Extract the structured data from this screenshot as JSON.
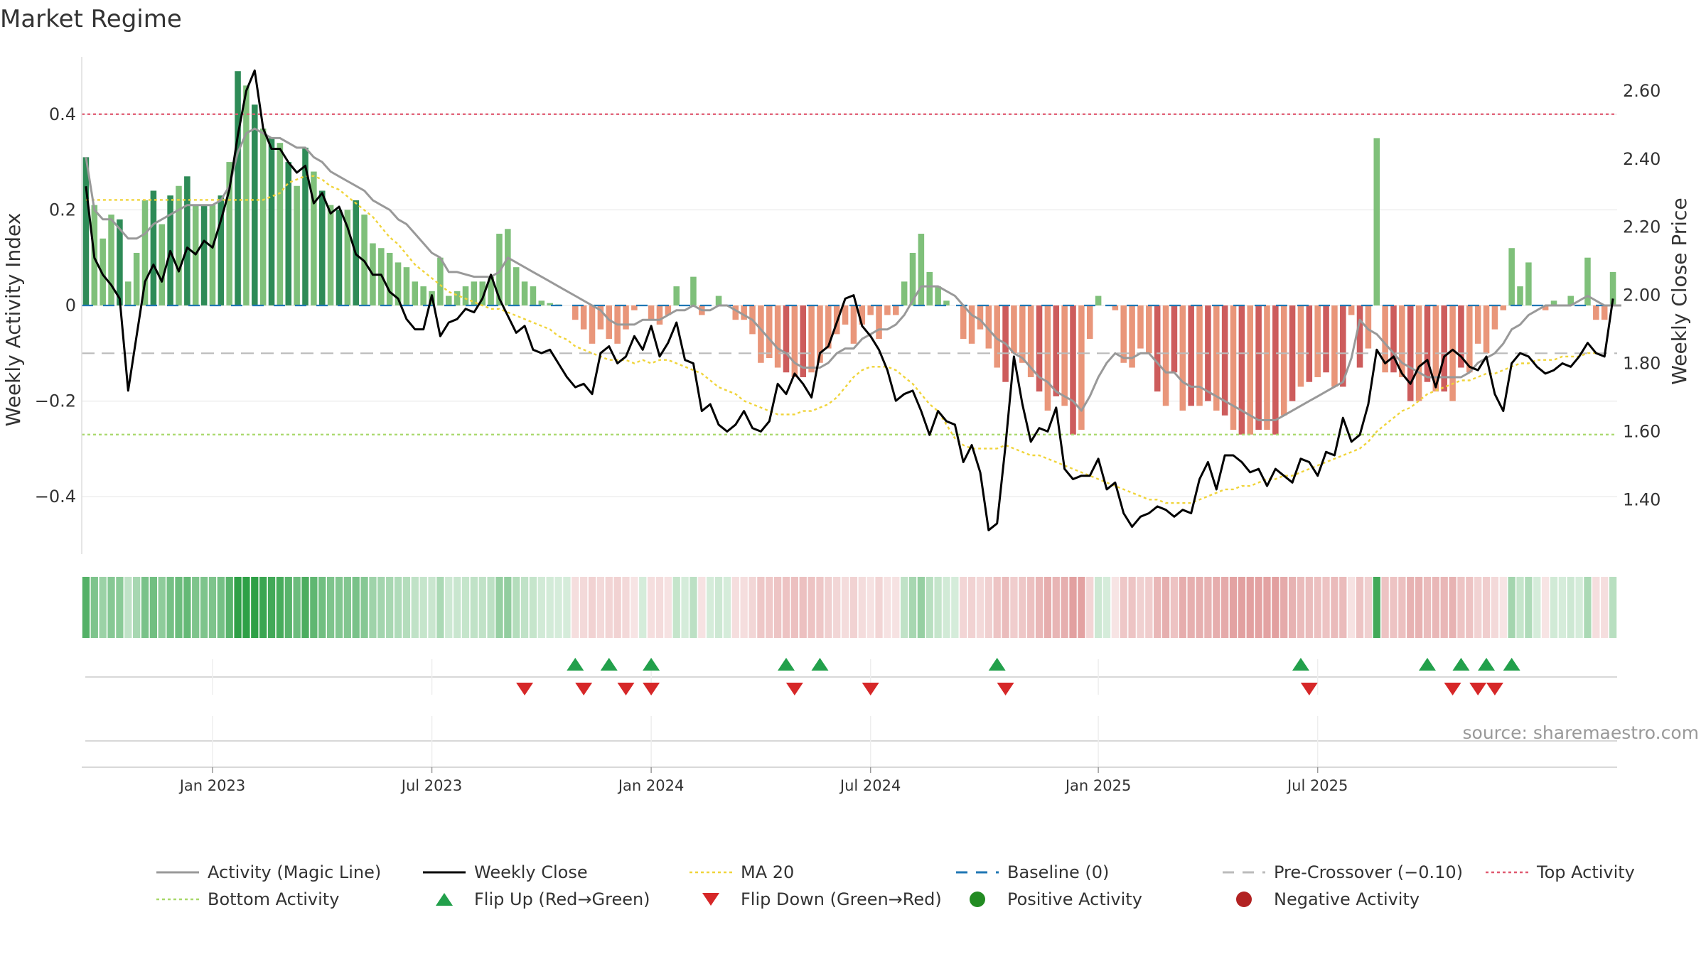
{
  "title": "Market Regime",
  "source": "source: sharemaestro.com",
  "colors": {
    "pos_dark": "#2e8b57",
    "pos_light": "#7fc07a",
    "neg_dark": "#cd5c5c",
    "neg_light": "#e9967a",
    "magic": "#999999",
    "close": "#000000",
    "ma": "#f0d43a",
    "baseline": "#1f77b4",
    "precross": "#bbbbbb",
    "top": "#e05a70",
    "bottom": "#a8d86a",
    "flip_up": "#22a04b",
    "flip_down": "#d62728",
    "pos_dot": "#228b22",
    "neg_dot": "#b22222"
  },
  "chart_data": {
    "type": "bar",
    "title": "Market Regime",
    "ylabel_left": "Weekly Activity Index",
    "ylabel_right": "Weekly Close Price",
    "ylim_left": [
      -0.52,
      0.52
    ],
    "ylim_right": [
      1.24,
      2.7
    ],
    "yticks_left": [
      0.4,
      0.2,
      0,
      -0.2,
      -0.4
    ],
    "ytick_labels_left": [
      "0.4",
      "0.2",
      "0",
      "−0.2",
      "−0.4"
    ],
    "yticks_right": [
      2.6,
      2.4,
      2.2,
      2.0,
      1.8,
      1.6,
      1.4
    ],
    "ytick_labels_right": [
      "2.60",
      "2.40",
      "2.20",
      "2.00",
      "1.80",
      "1.60",
      "1.40"
    ],
    "x_start": "2022-09-19",
    "x_step_days": 7,
    "xticks": [
      {
        "date": "2023-01-02",
        "label": "Jan 2023"
      },
      {
        "date": "2023-07-03",
        "label": "Jul 2023"
      },
      {
        "date": "2024-01-01",
        "label": "Jan 2024"
      },
      {
        "date": "2024-07-01",
        "label": "Jul 2024"
      },
      {
        "date": "2025-01-06",
        "label": "Jan 2025"
      },
      {
        "date": "2025-07-07",
        "label": "Jul 2025"
      }
    ],
    "top_activity": 0.4,
    "bottom_activity": -0.27,
    "pre_crossover": -0.1,
    "baseline": 0,
    "activity": [
      0.31,
      0.21,
      0.14,
      0.19,
      0.18,
      0.05,
      0.11,
      0.22,
      0.24,
      0.17,
      0.23,
      0.25,
      0.27,
      0.21,
      0.21,
      0.21,
      0.23,
      0.3,
      0.49,
      0.46,
      0.42,
      0.37,
      0.35,
      0.34,
      0.3,
      0.25,
      0.33,
      0.28,
      0.24,
      0.21,
      0.2,
      0.2,
      0.22,
      0.19,
      0.13,
      0.12,
      0.11,
      0.09,
      0.08,
      0.05,
      0.04,
      0.03,
      0.1,
      0.02,
      0.03,
      0.04,
      0.05,
      0.05,
      0.06,
      0.15,
      0.16,
      0.08,
      0.05,
      0.04,
      0.01,
      0.005,
      0.002,
      0.0,
      -0.03,
      -0.05,
      -0.08,
      -0.05,
      -0.07,
      -0.08,
      -0.05,
      -0.01,
      0.0,
      -0.03,
      -0.04,
      -0.02,
      0.04,
      0.0,
      0.06,
      -0.02,
      0.0,
      0.02,
      0.0,
      -0.03,
      -0.03,
      -0.06,
      -0.12,
      -0.11,
      -0.13,
      -0.14,
      -0.15,
      -0.15,
      -0.14,
      -0.12,
      -0.09,
      -0.06,
      -0.04,
      -0.08,
      -0.04,
      -0.02,
      -0.07,
      -0.02,
      -0.02,
      0.05,
      0.11,
      0.15,
      0.07,
      0.04,
      0.01,
      0.0,
      -0.07,
      -0.08,
      -0.05,
      -0.09,
      -0.13,
      -0.16,
      -0.1,
      -0.12,
      -0.15,
      -0.18,
      -0.22,
      -0.19,
      -0.21,
      -0.27,
      -0.26,
      -0.07,
      0.02,
      0.0,
      -0.01,
      -0.12,
      -0.13,
      -0.09,
      -0.1,
      -0.18,
      -0.21,
      -0.14,
      -0.22,
      -0.21,
      -0.21,
      -0.2,
      -0.22,
      -0.23,
      -0.26,
      -0.27,
      -0.27,
      -0.26,
      -0.26,
      -0.27,
      -0.23,
      -0.2,
      -0.17,
      -0.16,
      -0.15,
      -0.14,
      -0.17,
      -0.17,
      -0.02,
      -0.13,
      -0.09,
      0.35,
      -0.14,
      -0.14,
      -0.15,
      -0.2,
      -0.2,
      -0.16,
      -0.18,
      -0.18,
      -0.2,
      -0.13,
      -0.14,
      -0.08,
      -0.1,
      -0.05,
      -0.01,
      0.12,
      0.04,
      0.09,
      0.0,
      -0.01,
      0.01,
      0.0,
      0.02,
      0.0,
      0.1,
      -0.03,
      -0.03,
      0.07
    ],
    "magic_line": [
      0.31,
      0.2,
      0.18,
      0.18,
      0.16,
      0.14,
      0.14,
      0.15,
      0.17,
      0.18,
      0.19,
      0.2,
      0.21,
      0.21,
      0.21,
      0.21,
      0.22,
      0.25,
      0.32,
      0.36,
      0.37,
      0.36,
      0.35,
      0.35,
      0.34,
      0.33,
      0.33,
      0.31,
      0.3,
      0.28,
      0.27,
      0.26,
      0.25,
      0.24,
      0.22,
      0.21,
      0.2,
      0.18,
      0.17,
      0.15,
      0.13,
      0.11,
      0.1,
      0.07,
      0.07,
      0.065,
      0.06,
      0.06,
      0.06,
      0.07,
      0.1,
      0.09,
      0.08,
      0.07,
      0.06,
      0.05,
      0.04,
      0.03,
      0.02,
      0.01,
      0.0,
      -0.01,
      -0.03,
      -0.04,
      -0.04,
      -0.04,
      -0.03,
      -0.03,
      -0.03,
      -0.02,
      -0.01,
      -0.01,
      0.0,
      -0.01,
      -0.01,
      0.0,
      0.0,
      -0.01,
      -0.02,
      -0.03,
      -0.05,
      -0.07,
      -0.09,
      -0.1,
      -0.12,
      -0.13,
      -0.13,
      -0.13,
      -0.12,
      -0.1,
      -0.09,
      -0.09,
      -0.07,
      -0.06,
      -0.05,
      -0.05,
      -0.04,
      -0.02,
      0.01,
      0.04,
      0.04,
      0.04,
      0.03,
      0.02,
      0.0,
      -0.02,
      -0.03,
      -0.05,
      -0.07,
      -0.08,
      -0.1,
      -0.11,
      -0.13,
      -0.15,
      -0.16,
      -0.18,
      -0.19,
      -0.2,
      -0.22,
      -0.19,
      -0.15,
      -0.12,
      -0.1,
      -0.11,
      -0.11,
      -0.1,
      -0.1,
      -0.12,
      -0.14,
      -0.14,
      -0.16,
      -0.17,
      -0.17,
      -0.18,
      -0.19,
      -0.2,
      -0.21,
      -0.22,
      -0.23,
      -0.24,
      -0.24,
      -0.24,
      -0.23,
      -0.22,
      -0.21,
      -0.2,
      -0.19,
      -0.18,
      -0.17,
      -0.16,
      -0.11,
      -0.03,
      -0.05,
      -0.06,
      -0.08,
      -0.1,
      -0.12,
      -0.13,
      -0.14,
      -0.15,
      -0.15,
      -0.15,
      -0.15,
      -0.15,
      -0.14,
      -0.12,
      -0.11,
      -0.1,
      -0.08,
      -0.05,
      -0.04,
      -0.02,
      -0.01,
      0.0,
      0.0,
      0.0,
      0.0,
      0.01,
      0.02,
      0.01,
      0.0,
      0.0,
      0.0
    ],
    "weekly_close": [
      2.32,
      2.11,
      2.06,
      2.03,
      1.99,
      1.72,
      1.88,
      2.04,
      2.09,
      2.04,
      2.13,
      2.07,
      2.14,
      2.12,
      2.16,
      2.14,
      2.22,
      2.31,
      2.47,
      2.6,
      2.66,
      2.49,
      2.43,
      2.43,
      2.39,
      2.36,
      2.38,
      2.27,
      2.3,
      2.24,
      2.26,
      2.2,
      2.12,
      2.1,
      2.06,
      2.06,
      2.01,
      1.99,
      1.93,
      1.9,
      1.9,
      2.0,
      1.88,
      1.92,
      1.93,
      1.96,
      1.95,
      1.99,
      2.06,
      1.99,
      1.94,
      1.89,
      1.91,
      1.84,
      1.83,
      1.84,
      1.8,
      1.76,
      1.73,
      1.74,
      1.71,
      1.83,
      1.85,
      1.8,
      1.82,
      1.88,
      1.84,
      1.91,
      1.82,
      1.86,
      1.92,
      1.81,
      1.8,
      1.66,
      1.68,
      1.62,
      1.6,
      1.62,
      1.66,
      1.61,
      1.6,
      1.63,
      1.74,
      1.71,
      1.77,
      1.74,
      1.7,
      1.83,
      1.85,
      1.92,
      1.99,
      2.0,
      1.91,
      1.88,
      1.84,
      1.78,
      1.69,
      1.71,
      1.72,
      1.66,
      1.59,
      1.66,
      1.63,
      1.62,
      1.51,
      1.56,
      1.48,
      1.31,
      1.33,
      1.56,
      1.82,
      1.68,
      1.57,
      1.61,
      1.6,
      1.67,
      1.49,
      1.46,
      1.47,
      1.47,
      1.52,
      1.43,
      1.45,
      1.36,
      1.32,
      1.35,
      1.36,
      1.38,
      1.37,
      1.35,
      1.37,
      1.36,
      1.46,
      1.51,
      1.43,
      1.53,
      1.53,
      1.51,
      1.48,
      1.49,
      1.44,
      1.49,
      1.47,
      1.45,
      1.52,
      1.51,
      1.47,
      1.54,
      1.53,
      1.64,
      1.57,
      1.59,
      1.68,
      1.84,
      1.8,
      1.82,
      1.77,
      1.74,
      1.79,
      1.81,
      1.73,
      1.82,
      1.84,
      1.82,
      1.79,
      1.78,
      1.82,
      1.71,
      1.66,
      1.8,
      1.83,
      1.82,
      1.79,
      1.77,
      1.78,
      1.8,
      1.79,
      1.82,
      1.86,
      1.83,
      1.82,
      1.99
    ],
    "ma20": [
      2.28,
      2.28,
      2.28,
      2.28,
      2.28,
      2.28,
      2.28,
      2.28,
      2.28,
      2.28,
      2.28,
      2.28,
      2.28,
      2.28,
      2.28,
      2.28,
      2.28,
      2.28,
      2.28,
      2.28,
      2.28,
      2.28,
      2.29,
      2.3,
      2.33,
      2.34,
      2.35,
      2.35,
      2.34,
      2.32,
      2.31,
      2.29,
      2.27,
      2.25,
      2.23,
      2.2,
      2.17,
      2.15,
      2.12,
      2.09,
      2.07,
      2.05,
      2.03,
      2.01,
      2.0,
      1.99,
      1.98,
      1.97,
      1.96,
      1.96,
      1.95,
      1.94,
      1.93,
      1.92,
      1.91,
      1.9,
      1.88,
      1.87,
      1.85,
      1.84,
      1.83,
      1.82,
      1.81,
      1.81,
      1.81,
      1.8,
      1.81,
      1.8,
      1.81,
      1.81,
      1.8,
      1.79,
      1.78,
      1.77,
      1.75,
      1.73,
      1.72,
      1.71,
      1.69,
      1.68,
      1.67,
      1.66,
      1.65,
      1.65,
      1.65,
      1.66,
      1.66,
      1.67,
      1.68,
      1.7,
      1.73,
      1.76,
      1.78,
      1.79,
      1.79,
      1.79,
      1.78,
      1.76,
      1.74,
      1.71,
      1.68,
      1.66,
      1.62,
      1.58,
      1.56,
      1.55,
      1.55,
      1.55,
      1.55,
      1.56,
      1.55,
      1.54,
      1.53,
      1.53,
      1.52,
      1.51,
      1.5,
      1.49,
      1.48,
      1.47,
      1.46,
      1.45,
      1.44,
      1.43,
      1.42,
      1.41,
      1.4,
      1.4,
      1.39,
      1.39,
      1.39,
      1.39,
      1.4,
      1.41,
      1.42,
      1.43,
      1.43,
      1.44,
      1.44,
      1.45,
      1.46,
      1.46,
      1.47,
      1.47,
      1.48,
      1.49,
      1.5,
      1.51,
      1.52,
      1.53,
      1.54,
      1.55,
      1.57,
      1.6,
      1.62,
      1.64,
      1.66,
      1.67,
      1.69,
      1.71,
      1.72,
      1.73,
      1.74,
      1.75,
      1.75,
      1.76,
      1.77,
      1.77,
      1.78,
      1.79,
      1.8,
      1.8,
      1.81,
      1.81,
      1.81,
      1.82,
      1.82,
      1.82,
      1.83,
      1.83
    ],
    "flip_up_weeks": [
      58,
      62,
      67,
      83,
      87,
      108,
      144,
      159,
      163,
      166,
      169
    ],
    "flip_down_weeks": [
      52,
      59,
      64,
      67,
      84,
      93,
      109,
      145,
      162,
      165,
      167
    ],
    "strip_intensity": "abs(activity) scaled to green (positive) / red (negative) alpha",
    "legend": [
      {
        "label": "Activity (Magic Line)",
        "kind": "line",
        "color": "#999999"
      },
      {
        "label": "Weekly Close",
        "kind": "line",
        "color": "#000000"
      },
      {
        "label": "MA 20",
        "kind": "dotted",
        "color": "#f0d43a"
      },
      {
        "label": "Baseline (0)",
        "kind": "dashed",
        "color": "#1f77b4"
      },
      {
        "label": "Pre-Crossover (−0.10)",
        "kind": "dashed",
        "color": "#bbbbbb"
      },
      {
        "label": "Top Activity",
        "kind": "dotted",
        "color": "#e05a70"
      },
      {
        "label": "Bottom Activity",
        "kind": "dotted",
        "color": "#a8d86a"
      },
      {
        "label": "Flip Up (Red→Green)",
        "kind": "tri-up",
        "color": "#22a04b"
      },
      {
        "label": "Flip Down (Green→Red)",
        "kind": "tri-down",
        "color": "#d62728"
      },
      {
        "label": "Positive Activity",
        "kind": "dot",
        "color": "#228b22"
      },
      {
        "label": "Negative Activity",
        "kind": "dot",
        "color": "#b22222"
      }
    ]
  }
}
